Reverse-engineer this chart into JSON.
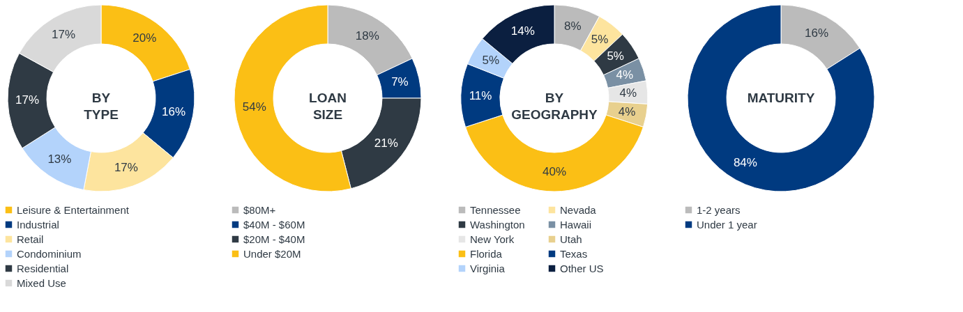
{
  "chart_data": [
    {
      "type": "donut",
      "title": "BY TYPE",
      "legend": "bottom",
      "categories": [
        "Leisure & Entertainment",
        "Industrial",
        "Retail",
        "Condominium",
        "Residential",
        "Mixed Use"
      ],
      "values": [
        20,
        16,
        17,
        13,
        17,
        17
      ],
      "value_labels": [
        "20%",
        "16%",
        "17%",
        "13%",
        "17%",
        "17%"
      ],
      "colors": [
        "#fbbf15",
        "#003a80",
        "#fde49e",
        "#b3d3fb",
        "#2f3a44",
        "#d9d9d9"
      ]
    },
    {
      "type": "donut",
      "title": "LOAN SIZE",
      "legend": "bottom",
      "categories": [
        "$80M+",
        "$40M - $60M",
        "$20M - $40M",
        "Under $20M"
      ],
      "values": [
        18,
        7,
        21,
        54
      ],
      "value_labels": [
        "18%",
        "7%",
        "21%",
        "54%"
      ],
      "colors": [
        "#bbbbbb",
        "#003a80",
        "#2f3a44",
        "#fbbf15"
      ]
    },
    {
      "type": "donut",
      "title": "BY GEOGRAPHY",
      "legend": "bottom",
      "categories": [
        "Tennessee",
        "Nevada",
        "Washington",
        "Hawaii",
        "New York",
        "Utah",
        "Florida",
        "Texas",
        "Virginia",
        "Other US"
      ],
      "values": [
        8,
        5,
        5,
        4,
        4,
        4,
        40,
        11,
        5,
        14
      ],
      "value_labels": [
        "8%",
        "5%",
        "5%",
        "4%",
        "4%",
        "4%",
        "40%",
        "11%",
        "5%",
        "14%"
      ],
      "colors": [
        "#bbbbbb",
        "#fde49e",
        "#2f3a44",
        "#7a90a4",
        "#e6e6e6",
        "#e8d08e",
        "#fbbf15",
        "#003a80",
        "#b3d3fb",
        "#0b1f40"
      ]
    },
    {
      "type": "donut",
      "title": "MATURITY",
      "legend": "bottom",
      "categories": [
        "1-2 years",
        "Under 1 year"
      ],
      "values": [
        16,
        84
      ],
      "value_labels": [
        "16%",
        "84%"
      ],
      "colors": [
        "#bbbbbb",
        "#003a80"
      ]
    }
  ]
}
